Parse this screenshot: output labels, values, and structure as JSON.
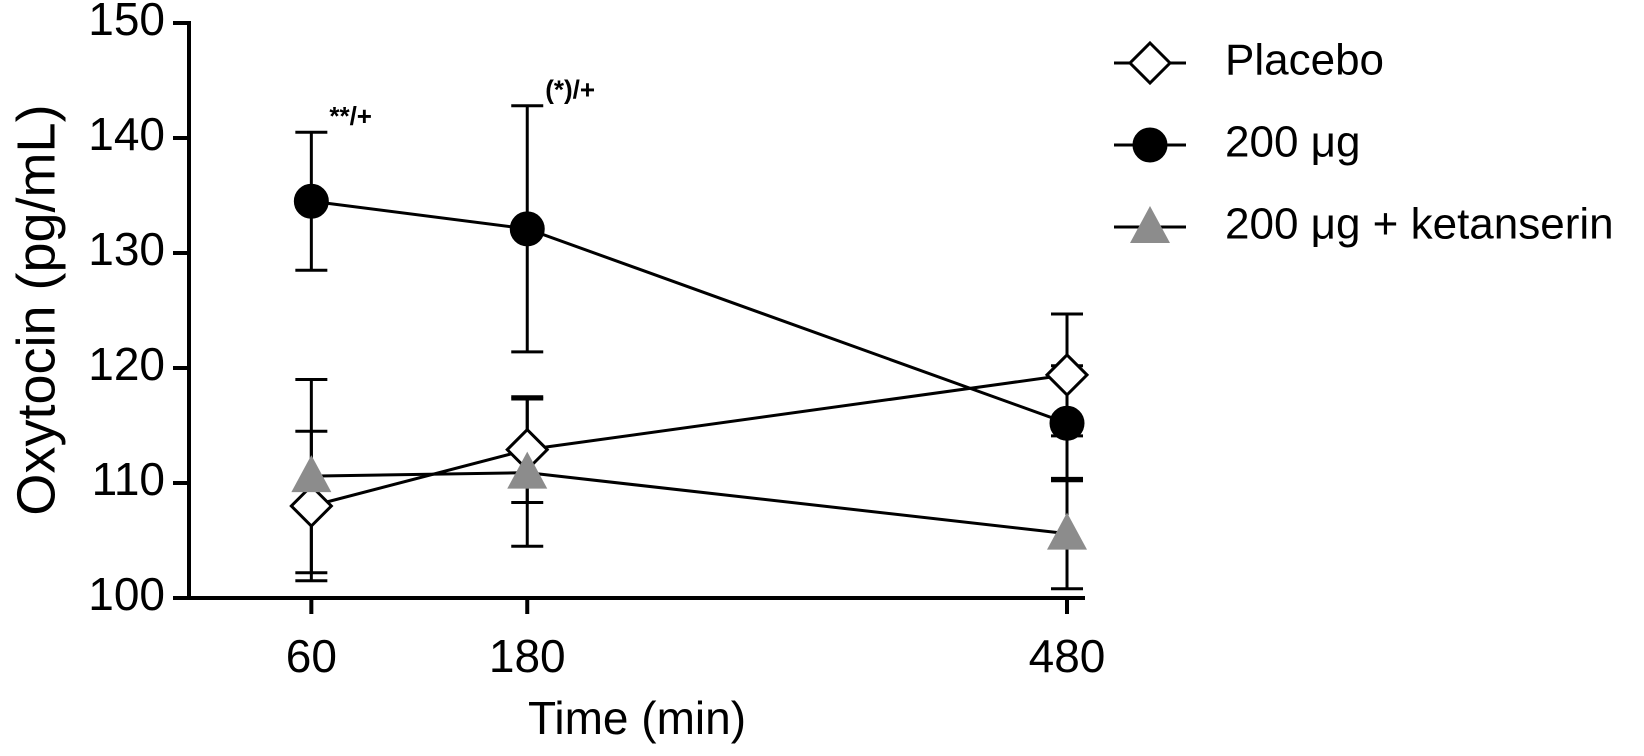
{
  "chart_data": {
    "type": "line",
    "x_label": "Time (min)",
    "y_label": "Oxytocin (pg/mL)",
    "x": [
      60,
      180,
      480
    ],
    "xlim": [
      -8,
      490
    ],
    "xticks": [
      60,
      180,
      480
    ],
    "ylim": [
      100,
      150
    ],
    "yticks": [
      100,
      110,
      120,
      130,
      140,
      150
    ],
    "legend": "outside-right",
    "series": [
      {
        "name": "Placebo",
        "color": "#ffffff",
        "marker": "diamond",
        "values": [
          108.0,
          112.9,
          119.4
        ],
        "errors": [
          6.5,
          4.6,
          5.3
        ]
      },
      {
        "name": "200 μg",
        "color": "#000000",
        "marker": "circle",
        "values": [
          134.5,
          132.1,
          115.2
        ],
        "errors": [
          6.0,
          10.7,
          5.0
        ]
      },
      {
        "name": "200 μg + ketanserin",
        "color": "#8c8c8c",
        "marker": "triangle",
        "values": [
          110.6,
          110.9,
          105.6
        ],
        "errors": [
          8.4,
          6.4,
          4.8
        ]
      }
    ],
    "annotations": [
      "**/+",
      "(*)/+"
    ]
  }
}
